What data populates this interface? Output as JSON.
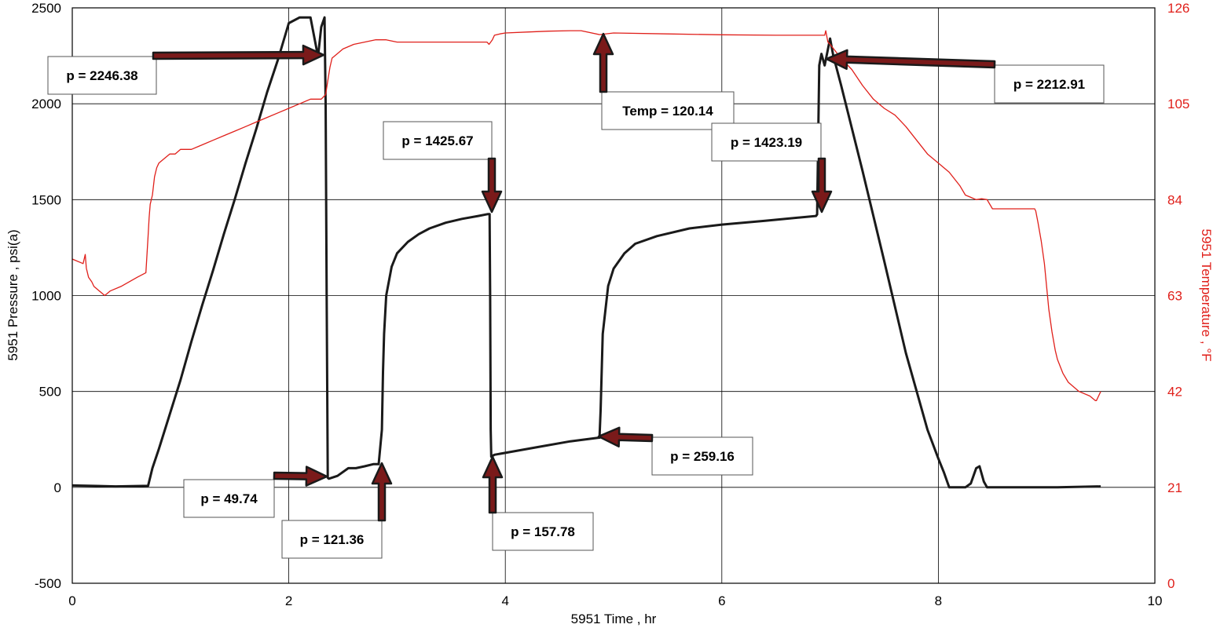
{
  "chart_data": {
    "type": "line",
    "xlabel": "5951 Time , hr",
    "ylabel_left": "5951 Pressure , psi(a)",
    "ylabel_right": "5951 Temperature , °F",
    "xlim": [
      0,
      10
    ],
    "ylim_left": [
      -500,
      2500
    ],
    "ylim_right": [
      0,
      126
    ],
    "x_ticks": [
      "0",
      "2",
      "4",
      "6",
      "8",
      "10"
    ],
    "y_ticks_left": [
      "-500",
      "0",
      "500",
      "1000",
      "1500",
      "2000",
      "2500"
    ],
    "y_ticks_right": [
      "0",
      "21",
      "42",
      "63",
      "84",
      "105",
      "126"
    ],
    "grid": true,
    "colors": {
      "pressure": "#1a1a1a",
      "temperature": "#e0201b",
      "arrow": "#7a1a1a",
      "right_axis_text": "#e0201b"
    },
    "series": [
      {
        "axis": "left",
        "x": [
          0,
          0.4,
          0.7,
          0.74,
          0.8,
          0.9,
          1.0,
          1.1,
          1.2,
          1.3,
          1.4,
          1.5,
          1.6,
          1.7,
          1.8,
          1.9,
          2.0,
          2.1,
          2.2,
          2.27,
          2.3,
          2.33,
          2.34,
          2.35,
          2.36,
          2.37,
          2.45,
          2.55,
          2.62,
          2.7,
          2.78,
          2.83,
          2.86,
          2.87,
          2.88,
          2.9,
          2.95,
          3.0,
          3.1,
          3.2,
          3.3,
          3.45,
          3.6,
          3.75,
          3.84,
          3.855,
          3.86,
          3.865,
          3.87,
          3.9,
          4.0,
          4.3,
          4.6,
          4.86,
          4.87,
          4.88,
          4.9,
          4.95,
          5.0,
          5.1,
          5.2,
          5.4,
          5.7,
          6.0,
          6.4,
          6.87,
          6.88,
          6.89,
          6.9,
          6.92,
          6.95,
          7.0,
          7.03,
          7.1,
          7.3,
          7.5,
          7.7,
          7.9,
          8.0,
          8.05,
          8.1,
          8.15,
          8.2,
          8.25,
          8.3,
          8.35,
          8.38,
          8.42,
          8.45,
          8.5,
          8.8,
          9.1,
          9.5
        ],
        "values": [
          10,
          5,
          8,
          100,
          200,
          380,
          560,
          760,
          950,
          1130,
          1320,
          1500,
          1690,
          1870,
          2060,
          2230,
          2420,
          2450,
          2450,
          2246,
          2400,
          2450,
          2000,
          1000,
          50,
          45,
          60,
          100,
          100,
          110,
          121,
          121,
          300,
          600,
          800,
          1000,
          1150,
          1220,
          1280,
          1320,
          1350,
          1380,
          1400,
          1415,
          1425,
          1425,
          1000,
          300,
          160,
          170,
          180,
          210,
          240,
          259,
          259,
          400,
          800,
          1050,
          1140,
          1220,
          1270,
          1310,
          1350,
          1370,
          1390,
          1415,
          1423,
          1800,
          2200,
          2260,
          2200,
          2340,
          2250,
          2100,
          1650,
          1180,
          700,
          300,
          150,
          80,
          0,
          0,
          0,
          0,
          20,
          100,
          110,
          30,
          0,
          0,
          0,
          0,
          5
        ]
      },
      {
        "axis": "right",
        "x": [
          0,
          0.1,
          0.12,
          0.13,
          0.15,
          0.18,
          0.2,
          0.25,
          0.3,
          0.35,
          0.45,
          0.6,
          0.68,
          0.7,
          0.71,
          0.72,
          0.74,
          0.76,
          0.78,
          0.8,
          0.85,
          0.9,
          0.95,
          1.0,
          1.1,
          1.2,
          1.3,
          1.4,
          1.5,
          1.6,
          1.7,
          1.8,
          1.9,
          2.0,
          2.1,
          2.2,
          2.3,
          2.34,
          2.36,
          2.38,
          2.4,
          2.45,
          2.5,
          2.6,
          2.7,
          2.8,
          2.9,
          3.0,
          3.1,
          3.2,
          3.3,
          3.5,
          3.7,
          3.8,
          3.83,
          3.85,
          3.88,
          3.9,
          3.95,
          4.0,
          4.2,
          4.4,
          4.6,
          4.7,
          4.87,
          5.0,
          5.5,
          6.0,
          6.5,
          6.95,
          6.96,
          6.98,
          7.0,
          7.05,
          7.1,
          7.2,
          7.3,
          7.4,
          7.5,
          7.6,
          7.7,
          7.8,
          7.9,
          8.0,
          8.1,
          8.2,
          8.25,
          8.3,
          8.35,
          8.4,
          8.45,
          8.5,
          8.7,
          8.89,
          8.9,
          8.92,
          8.95,
          8.98,
          9.0,
          9.02,
          9.05,
          9.08,
          9.1,
          9.15,
          9.2,
          9.3,
          9.4,
          9.45,
          9.46,
          9.5
        ],
        "values": [
          71,
          70,
          72,
          69,
          67,
          66,
          65,
          64,
          63,
          64,
          65,
          67,
          68,
          76,
          80,
          83,
          85,
          89,
          91,
          92,
          93,
          94,
          94,
          95,
          95,
          96,
          97,
          98,
          99,
          100,
          101,
          102,
          103,
          104,
          105,
          106,
          106,
          107,
          110,
          113,
          115,
          116,
          117,
          118,
          118.5,
          119,
          119,
          118.5,
          118.5,
          118.5,
          118.5,
          118.5,
          118.5,
          118.5,
          118.5,
          118,
          119,
          120,
          120.3,
          120.5,
          120.7,
          120.9,
          121,
          121,
          120.14,
          120.5,
          120.3,
          120.1,
          120,
          120,
          121,
          118.5,
          118,
          116.5,
          115,
          112.5,
          109,
          106,
          104,
          102.5,
          100,
          97,
          94,
          92,
          90,
          87,
          85,
          84.5,
          84,
          84.2,
          84,
          82,
          82,
          82,
          81.5,
          79,
          75,
          70,
          65,
          60,
          55,
          51,
          49,
          46,
          44,
          42,
          41,
          40,
          40,
          42
        ]
      }
    ],
    "annotations": [
      {
        "label": "p = 2246.38"
      },
      {
        "label": "p = 1425.67"
      },
      {
        "label": "Temp = 120.14"
      },
      {
        "label": "p = 1423.19"
      },
      {
        "label": "p = 2212.91"
      },
      {
        "label": "p = 49.74"
      },
      {
        "label": "p = 121.36"
      },
      {
        "label": "p = 157.78"
      },
      {
        "label": "p = 259.16"
      }
    ]
  }
}
